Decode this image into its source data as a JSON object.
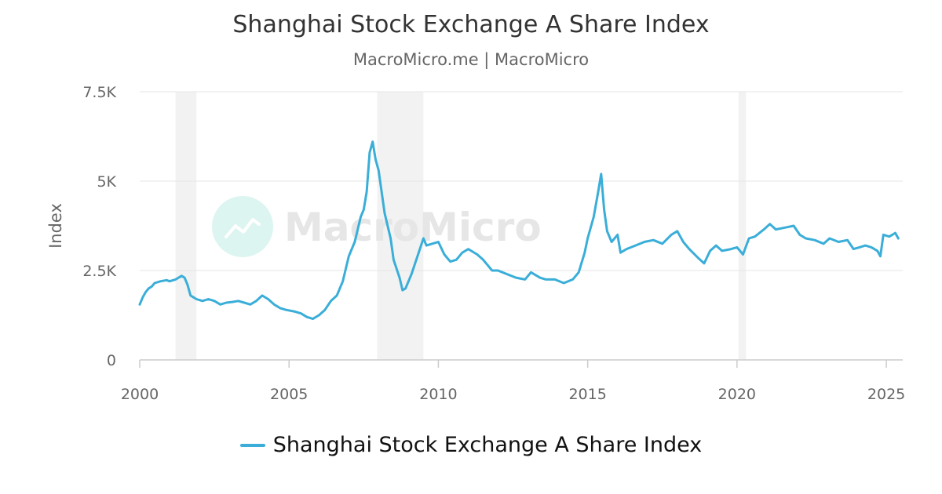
{
  "chart_data": {
    "type": "line",
    "title": "Shanghai Stock Exchange A Share Index",
    "subtitle": "MacroMicro.me | MacroMicro",
    "ylabel": "Index",
    "xlabel": "",
    "xlim": [
      2000.0,
      2025.55
    ],
    "ylim": [
      0,
      7500
    ],
    "y_ticks": [
      0,
      2500,
      5000,
      7500
    ],
    "y_tick_labels": [
      "0",
      "2.5K",
      "5K",
      "7.5K"
    ],
    "x_ticks": [
      2000,
      2005,
      2010,
      2015,
      2020,
      2025
    ],
    "x_tick_labels": [
      "2000",
      "2005",
      "2010",
      "2015",
      "2020",
      "2025"
    ],
    "grid": true,
    "legend_position": "bottom-center",
    "recession_bands": [
      [
        2001.2,
        2001.9
      ],
      [
        2007.95,
        2009.5
      ],
      [
        2020.05,
        2020.3
      ]
    ],
    "watermark": "MacroMicro",
    "series": [
      {
        "name": "Shanghai Stock Exchange A Share Index",
        "color": "#3aaed8",
        "x": [
          2000.0,
          2000.1,
          2000.2,
          2000.3,
          2000.4,
          2000.5,
          2000.7,
          2000.9,
          2001.0,
          2001.2,
          2001.4,
          2001.5,
          2001.6,
          2001.7,
          2001.8,
          2001.9,
          2002.1,
          2002.3,
          2002.5,
          2002.7,
          2002.9,
          2003.1,
          2003.3,
          2003.5,
          2003.7,
          2003.9,
          2004.1,
          2004.3,
          2004.5,
          2004.7,
          2004.9,
          2005.2,
          2005.4,
          2005.6,
          2005.8,
          2006.0,
          2006.2,
          2006.4,
          2006.6,
          2006.8,
          2007.0,
          2007.2,
          2007.4,
          2007.5,
          2007.6,
          2007.7,
          2007.8,
          2007.9,
          2008.0,
          2008.2,
          2008.4,
          2008.5,
          2008.7,
          2008.8,
          2008.9,
          2009.1,
          2009.3,
          2009.5,
          2009.6,
          2009.8,
          2010.0,
          2010.2,
          2010.4,
          2010.6,
          2010.8,
          2011.0,
          2011.3,
          2011.5,
          2011.8,
          2012.0,
          2012.3,
          2012.6,
          2012.9,
          2013.1,
          2013.4,
          2013.6,
          2013.9,
          2014.2,
          2014.5,
          2014.7,
          2014.9,
          2015.0,
          2015.2,
          2015.35,
          2015.45,
          2015.55,
          2015.65,
          2015.8,
          2016.0,
          2016.1,
          2016.3,
          2016.6,
          2016.9,
          2017.2,
          2017.5,
          2017.8,
          2018.0,
          2018.2,
          2018.4,
          2018.7,
          2018.9,
          2019.1,
          2019.3,
          2019.5,
          2019.8,
          2020.0,
          2020.2,
          2020.4,
          2020.6,
          2020.9,
          2021.1,
          2021.3,
          2021.6,
          2021.9,
          2022.1,
          2022.3,
          2022.6,
          2022.9,
          2023.1,
          2023.4,
          2023.7,
          2023.9,
          2024.1,
          2024.3,
          2024.5,
          2024.7,
          2024.8,
          2024.9,
          2025.1,
          2025.3,
          2025.4
        ],
        "values": [
          1550,
          1750,
          1900,
          2000,
          2050,
          2150,
          2200,
          2230,
          2200,
          2250,
          2350,
          2300,
          2100,
          1800,
          1750,
          1700,
          1650,
          1700,
          1650,
          1550,
          1600,
          1620,
          1650,
          1600,
          1550,
          1650,
          1800,
          1700,
          1550,
          1450,
          1400,
          1350,
          1300,
          1200,
          1150,
          1250,
          1400,
          1650,
          1800,
          2200,
          2900,
          3300,
          4000,
          4200,
          4700,
          5800,
          6100,
          5600,
          5300,
          4100,
          3400,
          2800,
          2300,
          1950,
          2000,
          2400,
          2900,
          3400,
          3200,
          3250,
          3300,
          2950,
          2750,
          2800,
          3000,
          3100,
          2950,
          2800,
          2500,
          2500,
          2400,
          2300,
          2250,
          2450,
          2300,
          2250,
          2250,
          2150,
          2250,
          2450,
          3000,
          3400,
          4000,
          4700,
          5200,
          4200,
          3600,
          3300,
          3500,
          3000,
          3100,
          3200,
          3300,
          3350,
          3250,
          3500,
          3600,
          3300,
          3100,
          2850,
          2700,
          3050,
          3200,
          3050,
          3100,
          3150,
          2950,
          3400,
          3450,
          3650,
          3800,
          3650,
          3700,
          3750,
          3500,
          3400,
          3350,
          3250,
          3400,
          3300,
          3350,
          3100,
          3150,
          3200,
          3150,
          3050,
          2900,
          3500,
          3450,
          3550,
          3400
        ]
      }
    ]
  }
}
